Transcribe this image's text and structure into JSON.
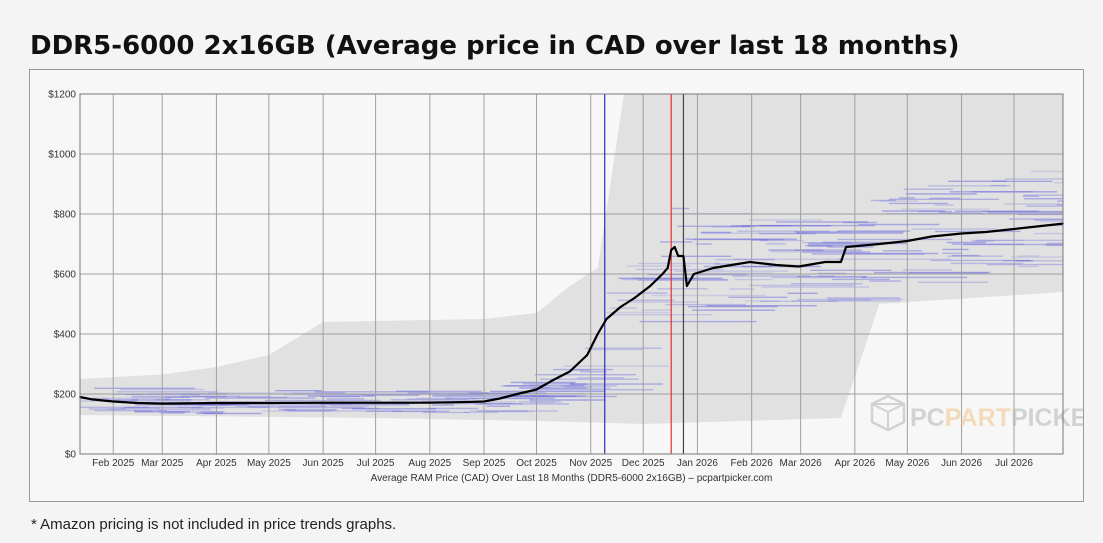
{
  "page": {
    "title": "DDR5-6000 2x16GB (Average price in CAD over last 18 months)",
    "footnote": "* Amazon pricing is not included in price trends graphs."
  },
  "watermark": {
    "text_part1": "PC",
    "text_part2": "PART",
    "text_part3": "PICKER"
  },
  "colors": {
    "average_line": "#000000",
    "price_bands": "#6666dd",
    "range_fill": "#d9d9d9",
    "marker_blue": "#2b2bbf",
    "marker_red": "#e03030",
    "marker_black": "#444444",
    "grid": "#a0a0a0"
  },
  "chart_data": {
    "type": "line",
    "title": "",
    "xlabel": "Average RAM Price (CAD) Over Last 18 Months (DDR5-6000 2x16GB) – pcpartpicker.com",
    "ylabel": "",
    "ylim": [
      0,
      1200
    ],
    "xlim": [
      "2025-01-13",
      "2026-07-29"
    ],
    "x_ticks": [
      "2025-02-01",
      "2025-03-01",
      "2025-04-01",
      "2025-05-01",
      "2025-06-01",
      "2025-07-01",
      "2025-08-01",
      "2025-09-01",
      "2025-10-01",
      "2025-11-01",
      "2025-12-01",
      "2026-01-01",
      "2026-02-01",
      "2026-03-01",
      "2026-04-01",
      "2026-05-01",
      "2026-06-01",
      "2026-07-01"
    ],
    "x_tick_labels": [
      "Feb 2025",
      "Mar 2025",
      "Apr 2025",
      "May 2025",
      "Jun 2025",
      "Jul 2025",
      "Aug 2025",
      "Sep 2025",
      "Oct 2025",
      "Nov 2025",
      "Dec 2025",
      "Jan 2026",
      "Feb 2026",
      "Mar 2026",
      "Apr 2026",
      "May 2026",
      "Jun 2026",
      "Jul 2026"
    ],
    "y_ticks": [
      0,
      200,
      400,
      600,
      800,
      1000,
      1200
    ],
    "y_tick_labels": [
      "$0",
      "$200",
      "$400",
      "$600",
      "$800",
      "$1000",
      "$1200"
    ],
    "grid": true,
    "legend": "none",
    "vertical_markers": [
      {
        "date": "2025-11-09",
        "color": "blue"
      },
      {
        "date": "2025-12-17",
        "color": "red"
      },
      {
        "date": "2025-12-24",
        "color": "black"
      }
    ],
    "series": [
      {
        "values": [
          [
            "2025-01-13",
            190
          ],
          [
            "2025-01-20",
            182
          ],
          [
            "2025-02-01",
            175
          ],
          [
            "2025-02-15",
            170
          ],
          [
            "2025-03-01",
            168
          ],
          [
            "2025-04-01",
            170
          ],
          [
            "2025-05-01",
            170
          ],
          [
            "2025-06-01",
            171
          ],
          [
            "2025-07-01",
            171
          ],
          [
            "2025-08-01",
            171
          ],
          [
            "2025-08-20",
            173
          ],
          [
            "2025-09-01",
            175
          ],
          [
            "2025-09-10",
            185
          ],
          [
            "2025-09-20",
            200
          ],
          [
            "2025-10-01",
            215
          ],
          [
            "2025-10-10",
            245
          ],
          [
            "2025-10-20",
            275
          ],
          [
            "2025-10-30",
            330
          ],
          [
            "2025-11-05",
            400
          ],
          [
            "2025-11-10",
            450
          ],
          [
            "2025-11-18",
            490
          ],
          [
            "2025-11-26",
            520
          ],
          [
            "2025-12-05",
            560
          ],
          [
            "2025-12-12",
            600
          ],
          [
            "2025-12-15",
            620
          ],
          [
            "2025-12-17",
            680
          ],
          [
            "2025-12-19",
            690
          ],
          [
            "2025-12-21",
            660
          ],
          [
            "2025-12-24",
            660
          ],
          [
            "2025-12-26",
            560
          ],
          [
            "2025-12-30",
            600
          ],
          [
            "2026-01-10",
            620
          ],
          [
            "2026-01-31",
            640
          ],
          [
            "2026-02-15",
            630
          ],
          [
            "2026-02-28",
            625
          ],
          [
            "2026-03-15",
            640
          ],
          [
            "2026-03-24",
            640
          ],
          [
            "2026-03-27",
            690
          ],
          [
            "2026-04-15",
            700
          ],
          [
            "2026-05-01",
            710
          ],
          [
            "2026-05-15",
            725
          ],
          [
            "2026-06-01",
            735
          ],
          [
            "2026-06-15",
            740
          ],
          [
            "2026-07-01",
            750
          ],
          [
            "2026-07-29",
            768
          ]
        ]
      }
    ],
    "price_range": {
      "upper": [
        [
          "2025-01-13",
          250
        ],
        [
          "2025-03-01",
          265
        ],
        [
          "2025-04-01",
          290
        ],
        [
          "2025-05-01",
          330
        ],
        [
          "2025-06-01",
          440
        ],
        [
          "2025-09-01",
          450
        ],
        [
          "2025-10-01",
          470
        ],
        [
          "2025-10-20",
          560
        ],
        [
          "2025-11-05",
          620
        ],
        [
          "2025-11-20",
          1200
        ],
        [
          "2026-07-29",
          1200
        ]
      ],
      "lower": [
        [
          "2025-01-13",
          130
        ],
        [
          "2025-07-01",
          120
        ],
        [
          "2025-10-01",
          110
        ],
        [
          "2025-12-01",
          100
        ],
        [
          "2026-03-24",
          120
        ],
        [
          "2026-04-15",
          500
        ],
        [
          "2026-07-29",
          540
        ]
      ]
    }
  }
}
